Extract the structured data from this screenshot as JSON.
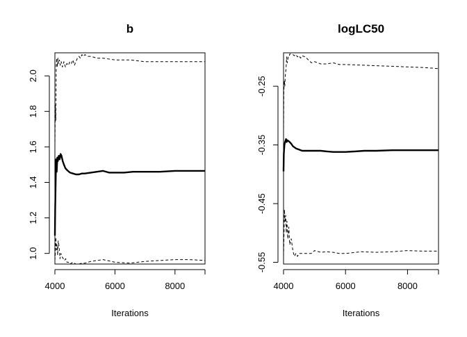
{
  "chart_data": [
    {
      "type": "line",
      "title": "b",
      "xlabel": "Iterations",
      "ylabel": "",
      "xlim": [
        4000,
        9000
      ],
      "ylim": [
        0.94,
        2.13
      ],
      "xticks": [
        {
          "value": 4000,
          "label": "4000"
        },
        {
          "value": 6000,
          "label": "6000"
        },
        {
          "value": 8000,
          "label": "8000"
        }
      ],
      "yticks": [
        {
          "value": 1.0,
          "label": "1.0"
        },
        {
          "value": 1.2,
          "label": "1.2"
        },
        {
          "value": 1.4,
          "label": "1.4"
        },
        {
          "value": 1.6,
          "label": "1.6"
        },
        {
          "value": 1.8,
          "label": "1.8"
        },
        {
          "value": 2.0,
          "label": "2.0"
        }
      ],
      "grid": false,
      "series": [
        {
          "line_style": "solid-thick",
          "x": [
            4000,
            4010,
            4025,
            4040,
            4060,
            4080,
            4100,
            4130,
            4160,
            4190,
            4220,
            4260,
            4300,
            4350,
            4400,
            4500,
            4600,
            4700,
            4800,
            4900,
            5000,
            5200,
            5400,
            5600,
            5800,
            6000,
            6300,
            6600,
            7000,
            7500,
            8000,
            8500,
            9000
          ],
          "y": [
            1.1,
            1.25,
            1.4,
            1.53,
            1.46,
            1.54,
            1.52,
            1.55,
            1.53,
            1.56,
            1.55,
            1.52,
            1.5,
            1.48,
            1.47,
            1.455,
            1.45,
            1.445,
            1.445,
            1.45,
            1.45,
            1.455,
            1.46,
            1.465,
            1.455,
            1.455,
            1.455,
            1.46,
            1.46,
            1.46,
            1.465,
            1.465,
            1.465
          ]
        },
        {
          "line_style": "dashed",
          "x": [
            4000,
            4015,
            4030,
            4045,
            4060,
            4080,
            4100,
            4120,
            4150,
            4180,
            4210,
            4250,
            4300,
            4350,
            4400,
            4450,
            4500,
            4550,
            4600,
            4650,
            4700,
            4750,
            4800,
            4850,
            4900,
            4950,
            5000,
            5100,
            5200,
            5400,
            5600,
            6000,
            6500,
            7000,
            7500,
            8000,
            8500,
            9000
          ],
          "y": [
            1.6,
            1.84,
            1.75,
            2.06,
            2.1,
            2.05,
            2.1,
            2.07,
            2.09,
            2.06,
            2.08,
            2.05,
            2.08,
            2.05,
            2.07,
            2.06,
            2.08,
            2.07,
            2.09,
            2.06,
            2.08,
            2.1,
            2.11,
            2.1,
            2.12,
            2.11,
            2.12,
            2.11,
            2.11,
            2.1,
            2.1,
            2.09,
            2.09,
            2.08,
            2.08,
            2.08,
            2.08,
            2.08
          ]
        },
        {
          "line_style": "dashed",
          "x": [
            4000,
            4015,
            4030,
            4050,
            4070,
            4090,
            4110,
            4140,
            4170,
            4200,
            4240,
            4280,
            4320,
            4360,
            4400,
            4450,
            4500,
            4600,
            4700,
            4800,
            4900,
            5000,
            5200,
            5400,
            5600,
            6000,
            6500,
            7000,
            7500,
            8000,
            8500,
            9000
          ],
          "y": [
            0.96,
            1.0,
            1.09,
            1.02,
            1.05,
            0.99,
            1.07,
            1.04,
            0.97,
            1.0,
            0.98,
            0.97,
            0.96,
            0.97,
            0.95,
            0.95,
            0.94,
            0.95,
            0.94,
            0.94,
            0.945,
            0.945,
            0.955,
            0.96,
            0.965,
            0.95,
            0.945,
            0.955,
            0.96,
            0.965,
            0.965,
            0.96
          ]
        }
      ]
    },
    {
      "type": "line",
      "title": "logLC50",
      "xlabel": "Iterations",
      "ylabel": "",
      "xlim": [
        4000,
        9000
      ],
      "ylim": [
        -0.553,
        -0.193
      ],
      "xticks": [
        {
          "value": 4000,
          "label": "4000"
        },
        {
          "value": 6000,
          "label": "6000"
        },
        {
          "value": 8000,
          "label": "8000"
        }
      ],
      "yticks": [
        {
          "value": -0.25,
          "label": "-0.25"
        },
        {
          "value": -0.35,
          "label": "-0.35"
        },
        {
          "value": -0.45,
          "label": "-0.45"
        },
        {
          "value": -0.55,
          "label": "-0.55"
        }
      ],
      "grid": false,
      "series": [
        {
          "line_style": "solid-thick",
          "x": [
            4000,
            4010,
            4030,
            4050,
            4080,
            4100,
            4120,
            4150,
            4200,
            4250,
            4300,
            4400,
            4500,
            4600,
            4700,
            4800,
            5000,
            5200,
            5400,
            5600,
            5800,
            6000,
            6300,
            6600,
            7000,
            7500,
            8000,
            8500,
            9000
          ],
          "y": [
            -0.395,
            -0.365,
            -0.35,
            -0.345,
            -0.34,
            -0.345,
            -0.342,
            -0.343,
            -0.345,
            -0.348,
            -0.352,
            -0.356,
            -0.358,
            -0.36,
            -0.36,
            -0.36,
            -0.36,
            -0.36,
            -0.361,
            -0.362,
            -0.362,
            -0.362,
            -0.361,
            -0.36,
            -0.36,
            -0.359,
            -0.359,
            -0.359,
            -0.359
          ]
        },
        {
          "line_style": "dashed",
          "x": [
            4000,
            4010,
            4025,
            4040,
            4060,
            4080,
            4100,
            4120,
            4150,
            4180,
            4200,
            4250,
            4300,
            4350,
            4400,
            4450,
            4500,
            4550,
            4600,
            4700,
            4800,
            4900,
            5000,
            5200,
            5400,
            5600,
            5800,
            6000,
            6500,
            7000,
            7500,
            8000,
            8500,
            9000
          ],
          "y": [
            -0.33,
            -0.26,
            -0.24,
            -0.25,
            -0.23,
            -0.22,
            -0.2,
            -0.21,
            -0.2,
            -0.2,
            -0.195,
            -0.195,
            -0.196,
            -0.198,
            -0.196,
            -0.2,
            -0.198,
            -0.202,
            -0.198,
            -0.2,
            -0.205,
            -0.21,
            -0.208,
            -0.212,
            -0.212,
            -0.21,
            -0.213,
            -0.213,
            -0.214,
            -0.215,
            -0.216,
            -0.217,
            -0.218,
            -0.22
          ]
        },
        {
          "line_style": "dashed",
          "x": [
            4000,
            4015,
            4030,
            4050,
            4070,
            4090,
            4110,
            4140,
            4170,
            4200,
            4250,
            4300,
            4350,
            4400,
            4450,
            4500,
            4600,
            4700,
            4800,
            4900,
            5000,
            5200,
            5400,
            5600,
            5800,
            6000,
            6500,
            7000,
            7500,
            8000,
            8500,
            9000
          ],
          "y": [
            -0.54,
            -0.5,
            -0.46,
            -0.48,
            -0.47,
            -0.5,
            -0.48,
            -0.51,
            -0.49,
            -0.52,
            -0.51,
            -0.53,
            -0.54,
            -0.535,
            -0.54,
            -0.535,
            -0.535,
            -0.535,
            -0.535,
            -0.535,
            -0.53,
            -0.533,
            -0.532,
            -0.533,
            -0.535,
            -0.535,
            -0.532,
            -0.533,
            -0.532,
            -0.53,
            -0.531,
            -0.531
          ]
        }
      ]
    }
  ]
}
